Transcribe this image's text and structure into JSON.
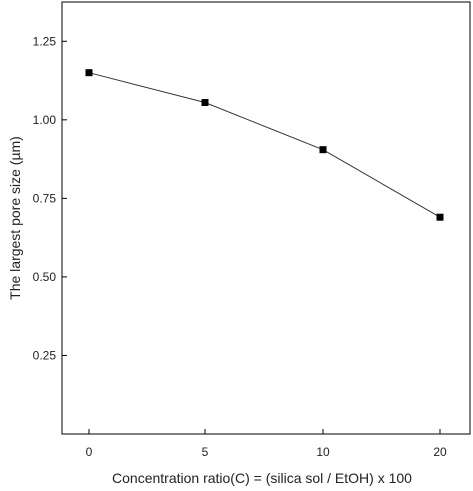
{
  "chart_data": {
    "type": "line",
    "title": "",
    "xlabel": "Concentration ratio(C) = (silica sol / EtOH) x 100",
    "ylabel": "The largest pore size (µm)",
    "categories": [
      "0",
      "5",
      "10",
      "20"
    ],
    "series": [
      {
        "values": [
          1.15,
          1.055,
          0.905,
          0.69
        ]
      }
    ],
    "ylim": [
      0,
      1.375
    ],
    "yticks": [
      0.25,
      0.5,
      0.75,
      1.0,
      1.25
    ],
    "ytick_labels": [
      "0.25",
      "0.50",
      "0.75",
      "1.00",
      "1.25"
    ],
    "marker": "square",
    "line_color": "#333333",
    "marker_color": "#000000",
    "grid": false,
    "legend": "none"
  }
}
